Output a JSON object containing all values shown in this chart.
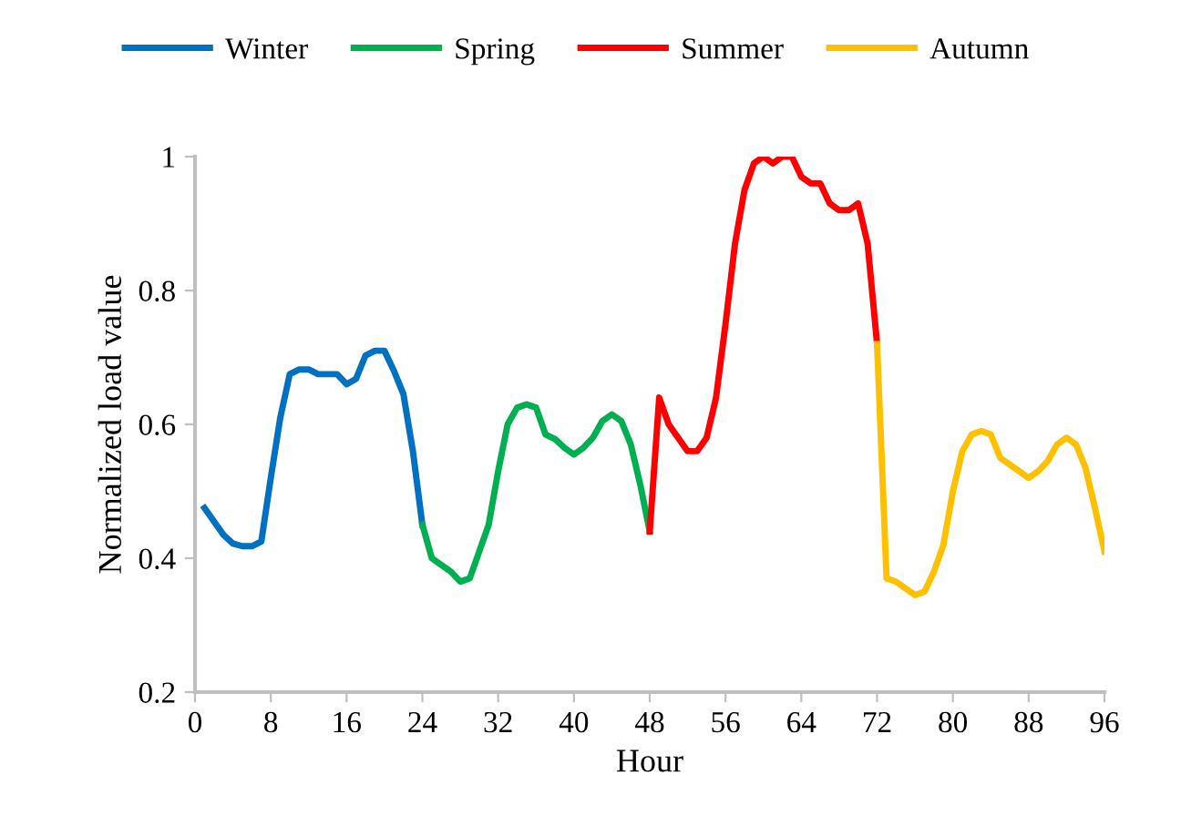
{
  "chart_data": {
    "type": "line",
    "xlabel": "Hour",
    "ylabel": "Normalized load value",
    "xlim": [
      0,
      96
    ],
    "xticks": [
      0,
      8,
      16,
      24,
      32,
      40,
      48,
      56,
      64,
      72,
      80,
      88,
      96
    ],
    "ylim": [
      0.2,
      1.0
    ],
    "yticks": [
      0.2,
      0.4,
      0.6,
      0.8,
      1
    ],
    "grid": false,
    "legend": "top",
    "marker": "none",
    "line_style": "solid",
    "series": [
      {
        "name": "Winter",
        "color": "#0070c0",
        "x": [
          1,
          2,
          3,
          4,
          5,
          6,
          7,
          8,
          9,
          10,
          11,
          12,
          13,
          14,
          15,
          16,
          17,
          18,
          19,
          20,
          21,
          22,
          23,
          24
        ],
        "values": [
          0.475,
          0.455,
          0.435,
          0.422,
          0.418,
          0.418,
          0.425,
          0.52,
          0.61,
          0.675,
          0.682,
          0.682,
          0.675,
          0.675,
          0.675,
          0.66,
          0.668,
          0.703,
          0.71,
          0.71,
          0.68,
          0.645,
          0.56,
          0.45
        ]
      },
      {
        "name": "Spring",
        "color": "#00b050",
        "x": [
          24,
          25,
          26,
          27,
          28,
          29,
          30,
          31,
          32,
          33,
          34,
          35,
          36,
          37,
          38,
          39,
          40,
          41,
          42,
          43,
          44,
          45,
          46,
          47,
          48
        ],
        "values": [
          0.45,
          0.4,
          0.39,
          0.38,
          0.365,
          0.37,
          0.41,
          0.45,
          0.53,
          0.6,
          0.625,
          0.63,
          0.625,
          0.585,
          0.578,
          0.565,
          0.555,
          0.565,
          0.58,
          0.605,
          0.615,
          0.605,
          0.57,
          0.51,
          0.44
        ]
      },
      {
        "name": "Summer",
        "color": "#ff0000",
        "x": [
          48,
          49,
          50,
          51,
          52,
          53,
          54,
          55,
          56,
          57,
          58,
          59,
          60,
          61,
          62,
          63,
          64,
          65,
          66,
          67,
          68,
          69,
          70,
          71,
          72
        ],
        "values": [
          0.44,
          0.64,
          0.6,
          0.58,
          0.56,
          0.56,
          0.58,
          0.64,
          0.75,
          0.87,
          0.95,
          0.99,
          1.0,
          0.99,
          1.0,
          1.0,
          0.97,
          0.96,
          0.96,
          0.93,
          0.92,
          0.92,
          0.93,
          0.87,
          0.72
        ]
      },
      {
        "name": "Autumn",
        "color": "#ffc000",
        "x": [
          72,
          73,
          74,
          75,
          76,
          77,
          78,
          79,
          80,
          81,
          82,
          83,
          84,
          85,
          86,
          87,
          88,
          89,
          90,
          91,
          92,
          93,
          94,
          95,
          96
        ],
        "values": [
          0.72,
          0.37,
          0.365,
          0.355,
          0.345,
          0.35,
          0.38,
          0.42,
          0.5,
          0.56,
          0.585,
          0.59,
          0.585,
          0.55,
          0.54,
          0.53,
          0.52,
          0.53,
          0.545,
          0.57,
          0.58,
          0.57,
          0.535,
          0.475,
          0.41
        ]
      }
    ]
  }
}
